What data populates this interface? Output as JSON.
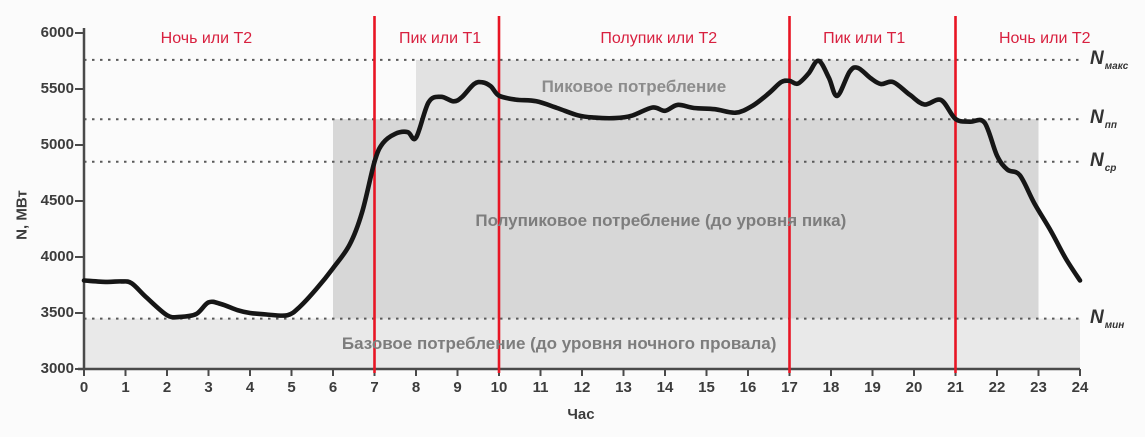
{
  "colors": {
    "divider_red": "#e81524",
    "phase_label_red": "#d8203f",
    "curve_black": "#161616",
    "band_base_gray": "#e9e9e9",
    "band_half_peak_gray": "#d7d7d7",
    "band_peak_gray": "#e2e2e2",
    "axis_gray": "#4a4a4a",
    "dotted_line_gray": "#5a5a5a",
    "zone_text_gray": "#7d7d7d",
    "tick_text_gray": "#3c3c3c"
  },
  "chart_data": {
    "type": "line",
    "title": "",
    "xlabel": "Час",
    "ylabel": "N, МВт",
    "xlim": [
      0,
      24
    ],
    "ylim": [
      3000,
      6000
    ],
    "grid": "dotted reference levels only",
    "x_ticks": [
      0,
      1,
      2,
      3,
      4,
      5,
      6,
      7,
      8,
      9,
      10,
      11,
      12,
      13,
      14,
      15,
      16,
      17,
      18,
      19,
      20,
      21,
      22,
      23,
      24
    ],
    "y_ticks": [
      3000,
      3500,
      4000,
      4500,
      5000,
      5500,
      6000
    ],
    "tariff_boundaries_h": [
      7,
      10,
      17,
      21
    ],
    "phase_labels": [
      {
        "text": "Ночь или Т2",
        "center_h": 2.95
      },
      {
        "text": "Пик или Т1",
        "center_h": 8.58
      },
      {
        "text": "Полупик или Т2",
        "center_h": 13.85
      },
      {
        "text": "Пик или Т1",
        "center_h": 18.8
      },
      {
        "text": "Ночь или Т2",
        "center_h": 23.15
      }
    ],
    "reference_lines": [
      {
        "name": "N-maks",
        "label_main": "N",
        "label_sub": "макс",
        "value": 5760
      },
      {
        "name": "N-pp",
        "label_main": "N",
        "label_sub": "пп",
        "value": 5230
      },
      {
        "name": "N-sr",
        "label_main": "N",
        "label_sub": "ср",
        "value": 4850
      },
      {
        "name": "N-min",
        "label_main": "N",
        "label_sub": "мин",
        "value": 3450
      }
    ],
    "zones": [
      {
        "name": "base",
        "label": "Базовое потребление (до уровня ночного провала)",
        "from_h": 0,
        "to_h": 24,
        "from_mw": 3000,
        "to_mw": 3450,
        "color": "#e9e9e9",
        "label_pos": {
          "h": 11.45,
          "mw": 3225
        }
      },
      {
        "name": "half-peak",
        "label": "Полупиковое потребление (до уровня пика)",
        "from_h": 6,
        "to_h": 23,
        "from_mw": 3450,
        "to_mw": 5230,
        "color": "#d7d7d7",
        "label_pos": {
          "h": 13.9,
          "mw": 4320
        }
      },
      {
        "name": "peak",
        "label": "Пиковое потребление",
        "from_h": 8,
        "to_h": 21,
        "from_mw": 5230,
        "to_mw": 5760,
        "color": "#e2e2e2",
        "label_pos": {
          "h": 13.25,
          "mw": 5520
        }
      }
    ],
    "series": [
      {
        "name": "load-curve",
        "points": [
          [
            0,
            3790
          ],
          [
            0.55,
            3778
          ],
          [
            0.9,
            3782
          ],
          [
            1.15,
            3765
          ],
          [
            1.5,
            3640
          ],
          [
            2,
            3480
          ],
          [
            2.3,
            3465
          ],
          [
            2.7,
            3490
          ],
          [
            3,
            3595
          ],
          [
            3.3,
            3580
          ],
          [
            3.7,
            3525
          ],
          [
            4,
            3500
          ],
          [
            4.4,
            3487
          ],
          [
            4.9,
            3480
          ],
          [
            5.2,
            3555
          ],
          [
            5.6,
            3715
          ],
          [
            6,
            3900
          ],
          [
            6.4,
            4110
          ],
          [
            6.7,
            4400
          ],
          [
            7,
            4850
          ],
          [
            7.2,
            5015
          ],
          [
            7.5,
            5100
          ],
          [
            7.8,
            5115
          ],
          [
            8,
            5065
          ],
          [
            8.3,
            5380
          ],
          [
            8.6,
            5430
          ],
          [
            8.9,
            5390
          ],
          [
            9.1,
            5425
          ],
          [
            9.4,
            5545
          ],
          [
            9.6,
            5560
          ],
          [
            9.8,
            5525
          ],
          [
            10,
            5440
          ],
          [
            10.4,
            5405
          ],
          [
            10.9,
            5390
          ],
          [
            11.4,
            5330
          ],
          [
            11.9,
            5265
          ],
          [
            12.3,
            5245
          ],
          [
            12.8,
            5240
          ],
          [
            13.2,
            5262
          ],
          [
            13.7,
            5335
          ],
          [
            14,
            5305
          ],
          [
            14.3,
            5358
          ],
          [
            14.7,
            5330
          ],
          [
            15.2,
            5320
          ],
          [
            15.7,
            5288
          ],
          [
            16.1,
            5348
          ],
          [
            16.5,
            5462
          ],
          [
            16.8,
            5562
          ],
          [
            17,
            5572
          ],
          [
            17.2,
            5548
          ],
          [
            17.45,
            5635
          ],
          [
            17.7,
            5752
          ],
          [
            17.95,
            5600
          ],
          [
            18.15,
            5438
          ],
          [
            18.45,
            5655
          ],
          [
            18.65,
            5688
          ],
          [
            18.95,
            5598
          ],
          [
            19.2,
            5545
          ],
          [
            19.5,
            5562
          ],
          [
            19.9,
            5448
          ],
          [
            20.25,
            5362
          ],
          [
            20.65,
            5402
          ],
          [
            21,
            5232
          ],
          [
            21.35,
            5208
          ],
          [
            21.7,
            5200
          ],
          [
            22,
            4905
          ],
          [
            22.25,
            4780
          ],
          [
            22.55,
            4730
          ],
          [
            22.9,
            4480
          ],
          [
            23.3,
            4230
          ],
          [
            23.65,
            3990
          ],
          [
            24,
            3790
          ]
        ]
      }
    ]
  }
}
